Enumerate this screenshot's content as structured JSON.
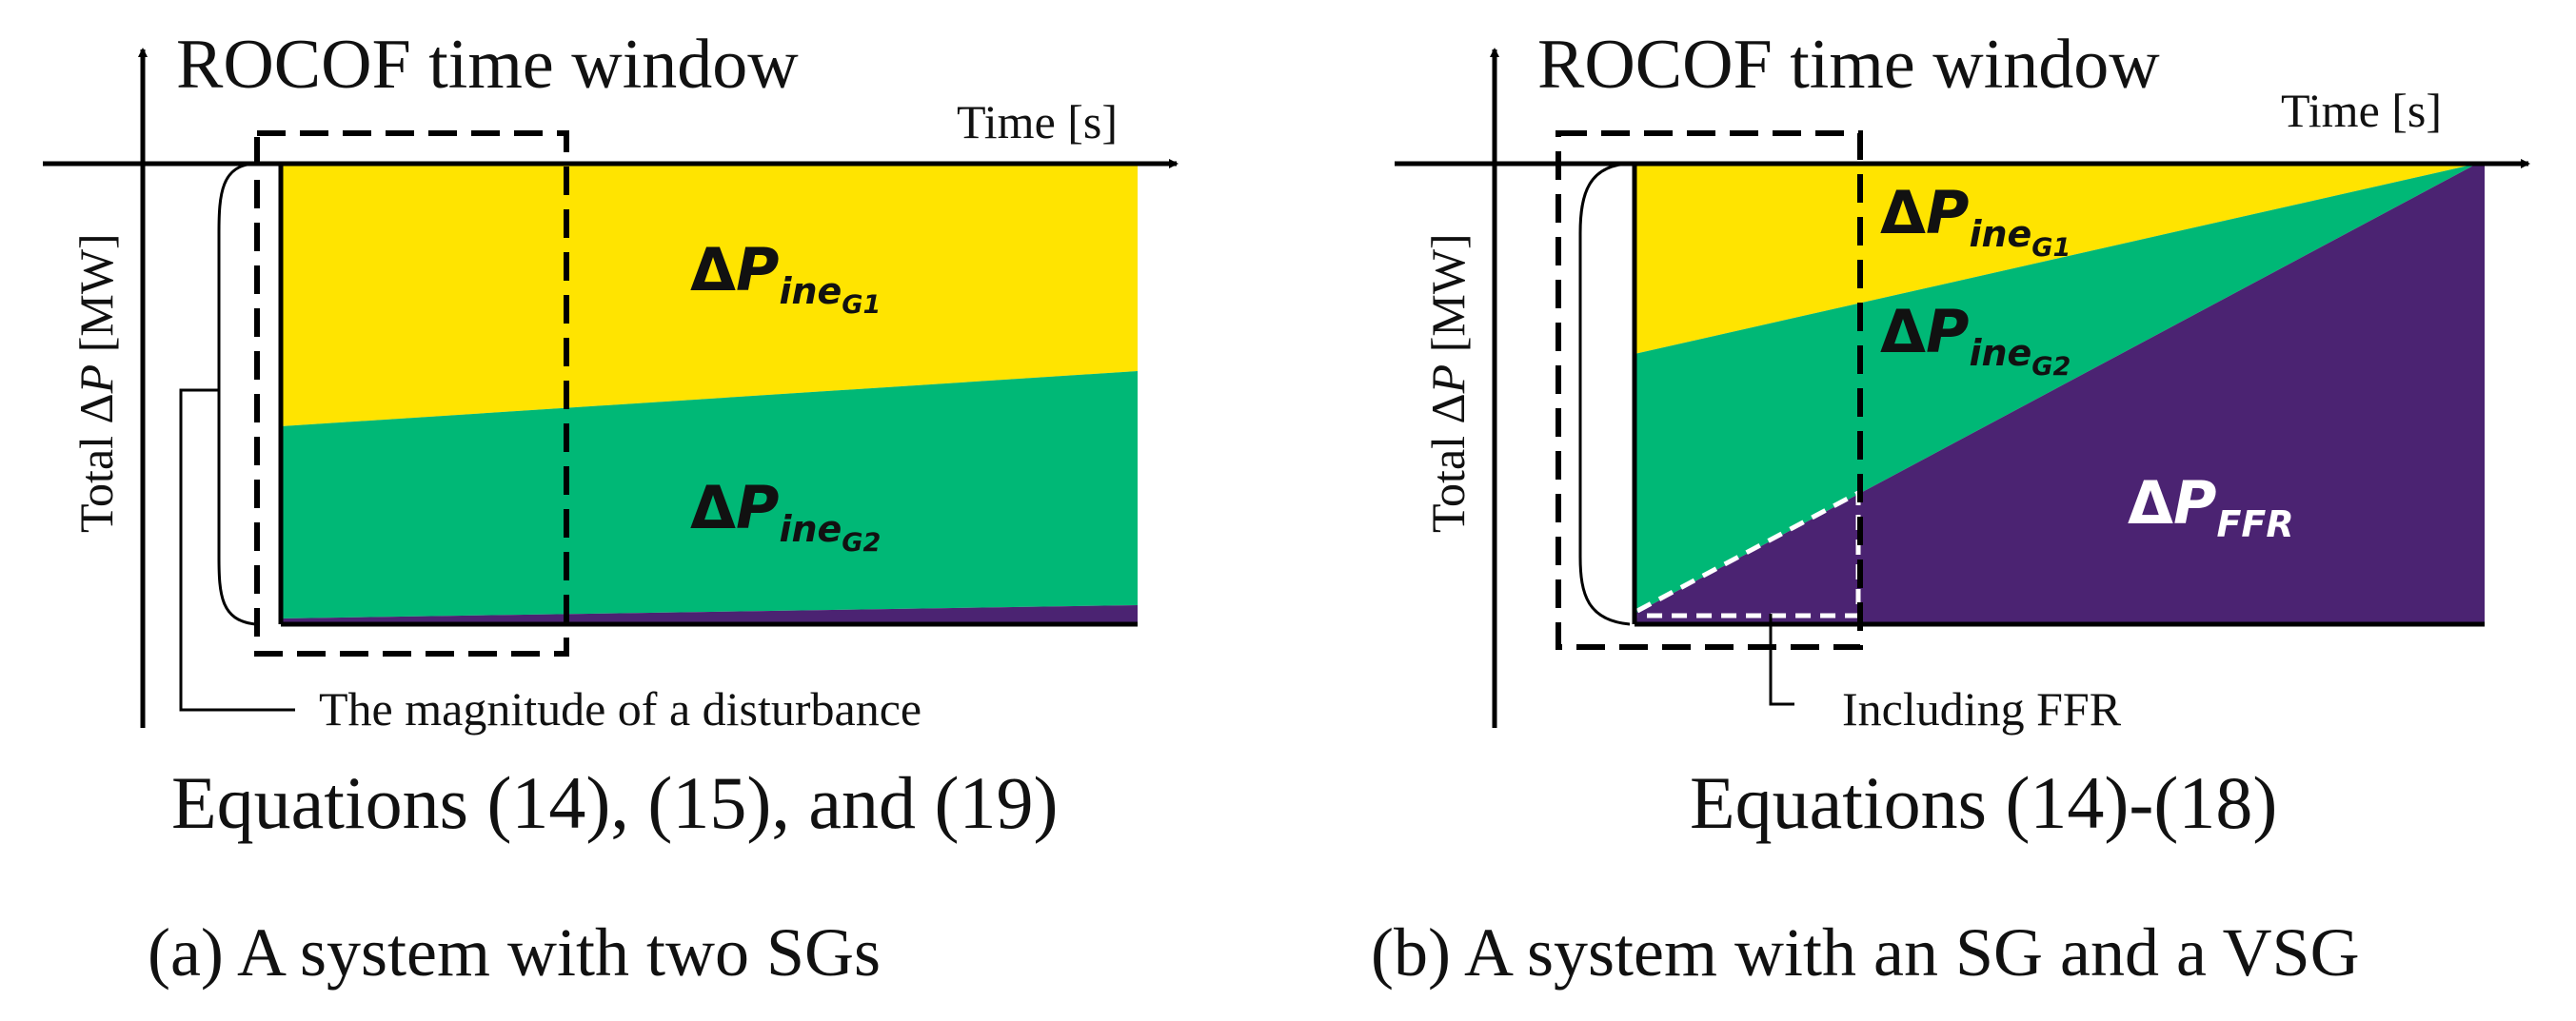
{
  "panel_a": {
    "title": "ROCOF time window",
    "x_axis_label": "Time [s]",
    "y_axis_label_prefix": "Total Δ",
    "y_axis_label_var": "P",
    "y_axis_label_unit": " [MW]",
    "region_top": {
      "delta": "Δ",
      "var": "P",
      "sub": "ine",
      "subsub": "G1",
      "color": "#FFE400"
    },
    "region_middle": {
      "delta": "Δ",
      "var": "P",
      "sub": "ine",
      "subsub": "G2",
      "color": "#00B876"
    },
    "region_bottom_color": "#4B2372",
    "annotation": "The magnitude of a disturbance",
    "equations": "Equations (14), (15), and (19)",
    "caption": "(a) A system with two SGs"
  },
  "panel_b": {
    "title": "ROCOF time window",
    "x_axis_label": "Time [s]",
    "y_axis_label_prefix": "Total Δ",
    "y_axis_label_var": "P",
    "y_axis_label_unit": " [MW]",
    "region_top": {
      "delta": "Δ",
      "var": "P",
      "sub": "ine",
      "subsub": "G1",
      "color": "#FFE400"
    },
    "region_middle": {
      "delta": "Δ",
      "var": "P",
      "sub": "ine",
      "subsub": "G2",
      "color": "#00B876"
    },
    "region_ffr": {
      "delta": "Δ",
      "var": "P",
      "sub": "FFR",
      "color": "#4B2372"
    },
    "annotation": "Including FFR",
    "equations": "Equations (14)-(18)",
    "caption": "(b) A system with an SG and a VSG"
  }
}
